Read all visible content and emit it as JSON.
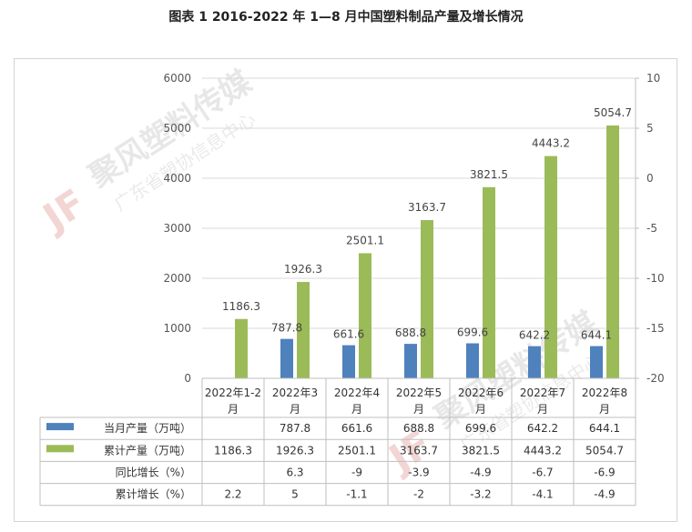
{
  "page_title": "图表 1 2016-2022 年 1—8 月中国塑料制品产量及增长情况",
  "watermark": {
    "brand": "聚风塑料传媒",
    "sub": "广东省塑协信息中心",
    "logo": "JF"
  },
  "colors": {
    "monthly": "#4f81bd",
    "cumulative": "#9bbb59",
    "grid": "#d9d9d9",
    "axis": "#bfbfbf"
  },
  "chart_data": {
    "type": "bar",
    "title": "",
    "categories": [
      "2022年1-2月",
      "2022年3月",
      "2022年4月",
      "2022年5月",
      "2022年6月",
      "2022年7月",
      "2022年8月"
    ],
    "category_lines": [
      [
        "2022年1-2",
        "月"
      ],
      [
        "2022年3",
        "月"
      ],
      [
        "2022年4",
        "月"
      ],
      [
        "2022年5",
        "月"
      ],
      [
        "2022年6",
        "月"
      ],
      [
        "2022年7",
        "月"
      ],
      [
        "2022年8",
        "月"
      ]
    ],
    "series": [
      {
        "name": "当月产量（万吨）",
        "axis": "left",
        "display": "bar",
        "legend": "blue-square",
        "values": [
          null,
          787.8,
          661.6,
          688.8,
          699.6,
          642.2,
          644.1
        ],
        "labels": [
          "",
          "787.8",
          "661.6",
          "688.8",
          "699.6",
          "642.2",
          "644.1"
        ]
      },
      {
        "name": "累计产量（万吨）",
        "axis": "left",
        "display": "bar",
        "legend": "green-square",
        "values": [
          1186.3,
          1926.3,
          2501.1,
          3163.7,
          3821.5,
          4443.2,
          5054.7
        ],
        "labels": [
          "1186.3",
          "1926.3",
          "2501.1",
          "3163.7",
          "3821.5",
          "4443.2",
          "5054.7"
        ]
      },
      {
        "name": "同比增长（%）",
        "axis": "right",
        "display": "table-only",
        "values": [
          null,
          6.3,
          -9,
          -3.9,
          -4.9,
          -6.7,
          -6.9
        ],
        "labels": [
          "",
          "6.3",
          "-9",
          "-3.9",
          "-4.9",
          "-6.7",
          "-6.9"
        ]
      },
      {
        "name": "累计增长（%）",
        "axis": "right",
        "display": "table-only",
        "values": [
          2.2,
          5,
          -1.1,
          -2,
          -3.2,
          -4.1,
          -4.9
        ],
        "labels": [
          "2.2",
          "5",
          "-1.1",
          "-2",
          "-3.2",
          "-4.1",
          "-4.9"
        ]
      }
    ],
    "y_left": {
      "min": 0,
      "max": 6000,
      "step": 1000,
      "ticks": [
        "0",
        "1000",
        "2000",
        "3000",
        "4000",
        "5000",
        "6000"
      ]
    },
    "y_right": {
      "min": -20,
      "max": 10,
      "step": 5,
      "ticks": [
        "-20",
        "-15",
        "-10",
        "-5",
        "0",
        "5",
        "10"
      ]
    },
    "grid": true,
    "legend": "data-table"
  }
}
